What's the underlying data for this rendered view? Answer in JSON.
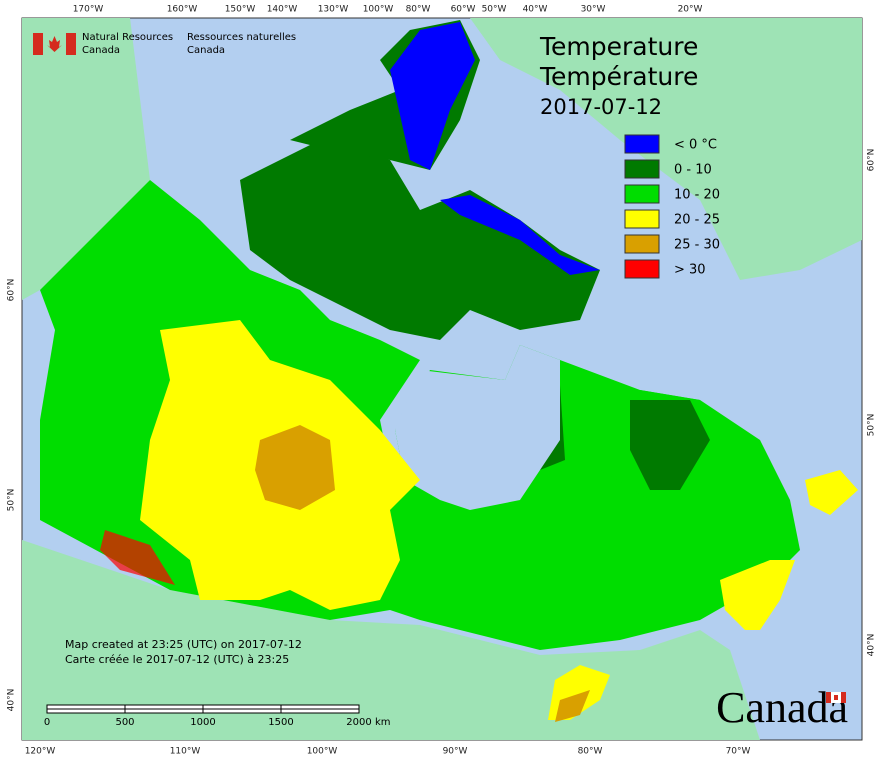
{
  "header": {
    "agency_en": [
      "Natural Resources",
      "Canada"
    ],
    "agency_fr": [
      "Ressources naturelles",
      "Canada"
    ]
  },
  "title": {
    "line1": "Temperature",
    "line2": "Température",
    "date": "2017-07-12"
  },
  "legend": [
    {
      "label": "< 0 °C",
      "color": "#0000ff"
    },
    {
      "label": "0 - 10",
      "color": "#007a00"
    },
    {
      "label": "10 - 20",
      "color": "#00dd00"
    },
    {
      "label": "20 - 25",
      "color": "#ffff00"
    },
    {
      "label": "25 - 30",
      "color": "#d9a000"
    },
    {
      "label": "> 30",
      "color": "#ff0000"
    }
  ],
  "graticule": {
    "top": [
      "170°W",
      "160°W",
      "150°W",
      "140°W",
      "130°W",
      "100°W",
      "80°W",
      "60°W",
      "50°W",
      "40°W",
      "30°W",
      "20°W"
    ],
    "bottom": [
      "120°W",
      "110°W",
      "100°W",
      "90°W",
      "80°W",
      "70°W"
    ],
    "left": [
      "60°N",
      "50°N",
      "40°N"
    ],
    "right": [
      "60°N",
      "50°N",
      "40°N"
    ]
  },
  "notes": [
    "Map created at 23:25 (UTC) on 2017-07-12",
    "Carte créée le 2017-07-12 (UTC) à 23:25"
  ],
  "scale_bar": {
    "ticks": [
      "0",
      "500",
      "1000",
      "1500",
      "2000"
    ],
    "unit": "km"
  },
  "wordmark": "Canada"
}
